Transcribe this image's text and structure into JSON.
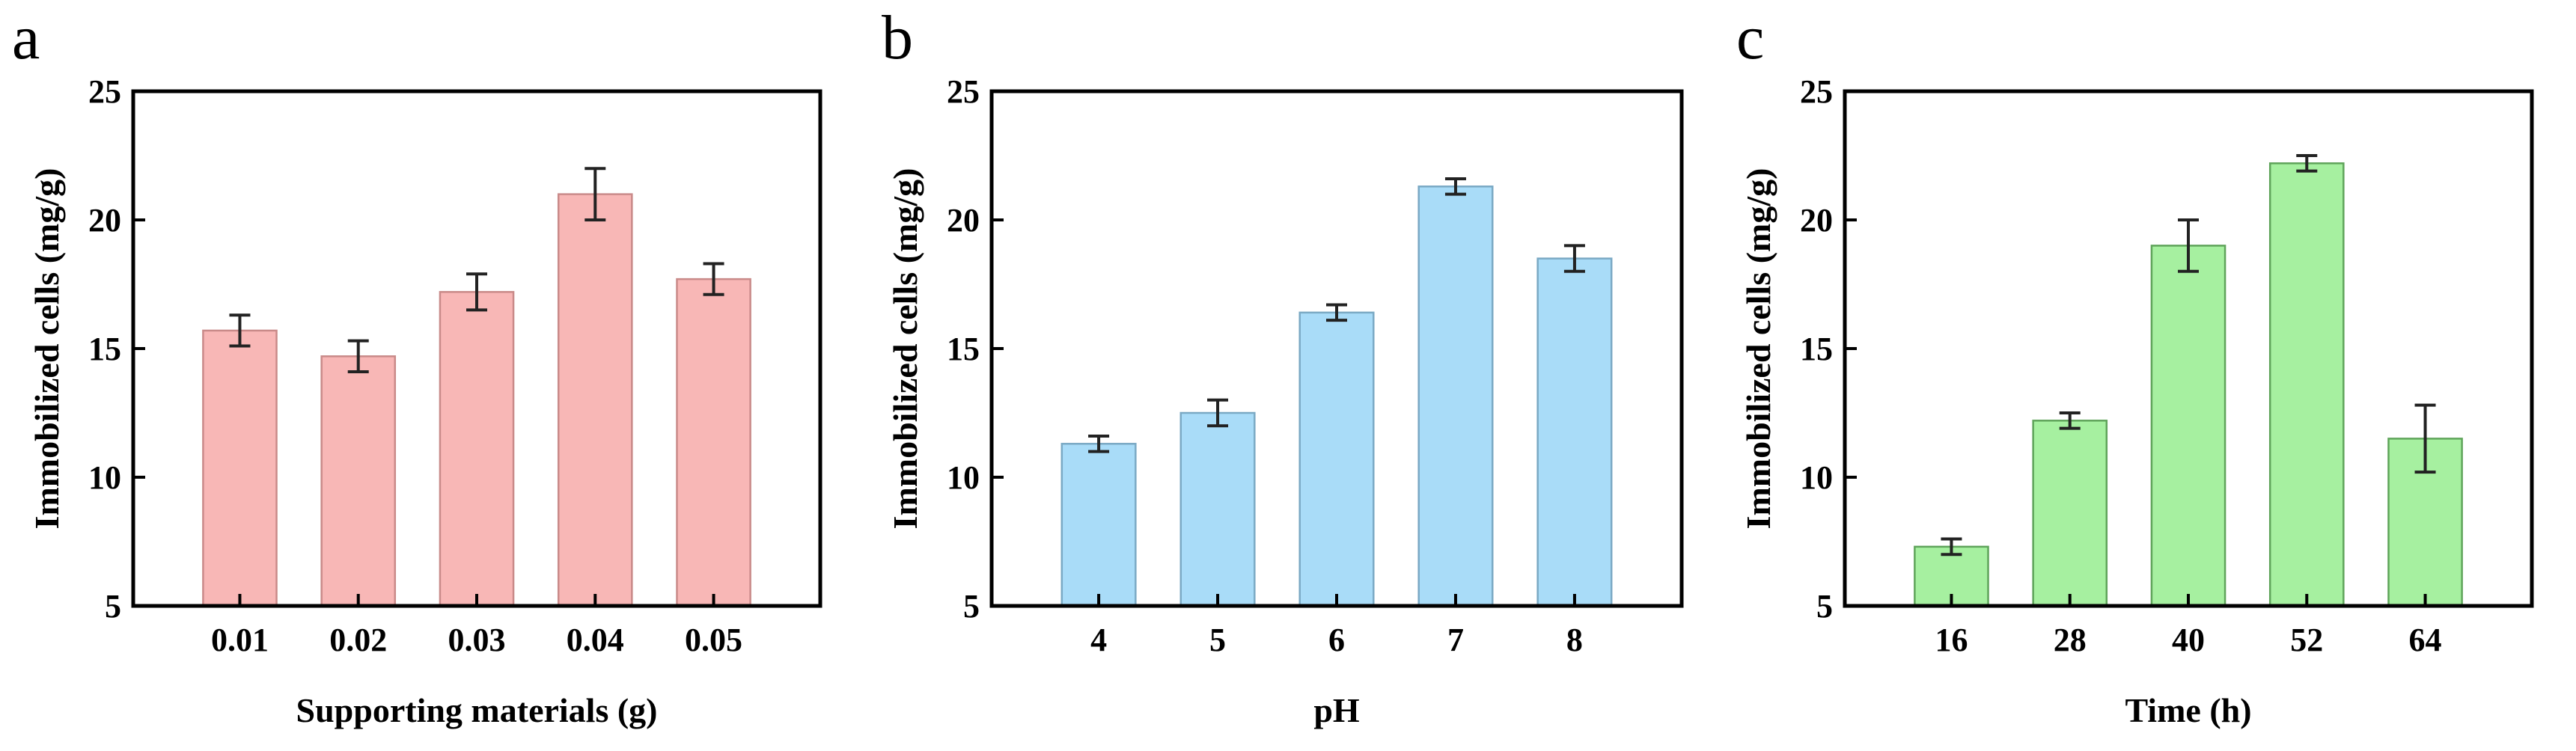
{
  "chart_data": [
    {
      "type": "bar",
      "panel_label": "a",
      "categories": [
        "0.01",
        "0.02",
        "0.03",
        "0.04",
        "0.05"
      ],
      "values": [
        15.7,
        14.7,
        17.2,
        21.0,
        17.7
      ],
      "errors": [
        0.6,
        0.6,
        0.7,
        1.0,
        0.6
      ],
      "color": "#f8b7b6",
      "edge_color": "#c98a89",
      "xlabel": "Supporting materials (g)",
      "ylabel": "Immobilized cells (mg/g)",
      "ylim": [
        5,
        25
      ],
      "yticks": [
        "5",
        "10",
        "15",
        "20",
        "25"
      ]
    },
    {
      "type": "bar",
      "panel_label": "b",
      "categories": [
        "4",
        "5",
        "6",
        "7",
        "8"
      ],
      "values": [
        11.3,
        12.5,
        16.4,
        21.3,
        18.5
      ],
      "errors": [
        0.3,
        0.5,
        0.3,
        0.3,
        0.5
      ],
      "color": "#a9dcf8",
      "edge_color": "#7aa9c4",
      "xlabel": "pH",
      "ylabel": "Immobilized cells (mg/g)",
      "ylim": [
        5,
        25
      ],
      "yticks": [
        "5",
        "10",
        "15",
        "20",
        "25"
      ]
    },
    {
      "type": "bar",
      "panel_label": "c",
      "categories": [
        "16",
        "28",
        "40",
        "52",
        "64"
      ],
      "values": [
        7.3,
        12.2,
        19.0,
        22.2,
        11.5
      ],
      "errors": [
        0.3,
        0.3,
        1.0,
        0.3,
        1.3
      ],
      "color": "#a6f0a0",
      "edge_color": "#5fa45a",
      "xlabel": "Time (h)",
      "ylabel": "Immobilized cells (mg/g)",
      "ylim": [
        5,
        25
      ],
      "yticks": [
        "5",
        "10",
        "15",
        "20",
        "25"
      ]
    }
  ]
}
